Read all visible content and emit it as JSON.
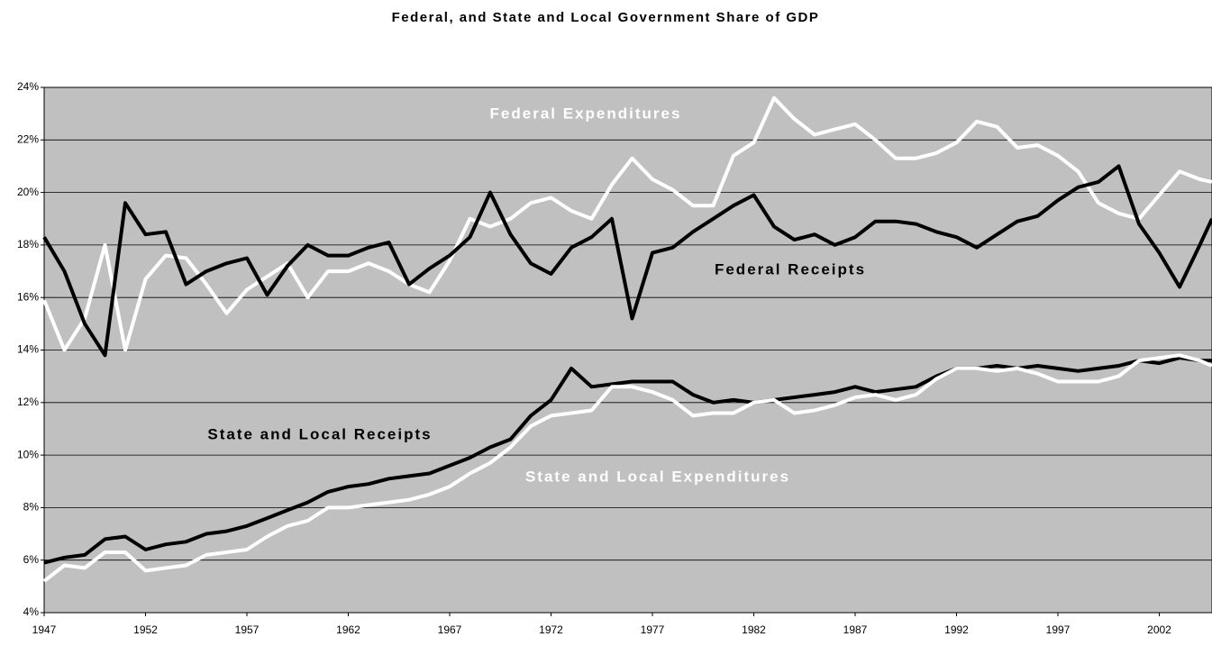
{
  "chart_data": {
    "type": "line",
    "title": "Federal, and State and Local Government Share of GDP",
    "x": [
      1947,
      1948,
      1949,
      1950,
      1951,
      1952,
      1953,
      1954,
      1955,
      1956,
      1957,
      1958,
      1959,
      1960,
      1961,
      1962,
      1963,
      1964,
      1965,
      1966,
      1967,
      1968,
      1969,
      1970,
      1971,
      1972,
      1973,
      1974,
      1975,
      1976,
      1977,
      1978,
      1979,
      1980,
      1981,
      1982,
      1983,
      1984,
      1985,
      1986,
      1987,
      1988,
      1989,
      1990,
      1991,
      1992,
      1993,
      1994,
      1995,
      1996,
      1997,
      1998,
      1999,
      2000,
      2001,
      2002,
      2003,
      2004,
      2004.6
    ],
    "series": [
      {
        "name": "Federal Expenditures",
        "color": "#ffffff",
        "values": [
          15.9,
          14.0,
          15.2,
          18.0,
          14.0,
          16.7,
          17.6,
          17.5,
          16.5,
          15.4,
          16.3,
          16.8,
          17.3,
          16.0,
          17.0,
          17.0,
          17.3,
          17.0,
          16.5,
          16.2,
          17.4,
          19.0,
          18.7,
          19.0,
          19.6,
          19.8,
          19.3,
          19.0,
          20.3,
          21.3,
          20.5,
          20.1,
          19.5,
          19.5,
          21.4,
          21.9,
          23.6,
          22.8,
          22.2,
          22.4,
          22.6,
          22.0,
          21.3,
          21.3,
          21.5,
          21.9,
          22.7,
          22.5,
          21.7,
          21.8,
          21.4,
          20.8,
          19.6,
          19.2,
          19.0,
          19.9,
          20.8,
          20.5,
          20.4
        ]
      },
      {
        "name": "Federal Receipts",
        "color": "#000000",
        "values": [
          18.3,
          17.0,
          15.0,
          13.8,
          19.6,
          18.4,
          18.5,
          16.5,
          17.0,
          17.3,
          17.5,
          16.1,
          17.2,
          18.0,
          17.6,
          17.6,
          17.9,
          18.1,
          16.5,
          17.1,
          17.6,
          18.3,
          20.0,
          18.4,
          17.3,
          16.9,
          17.9,
          18.3,
          19.0,
          15.2,
          17.7,
          17.9,
          18.5,
          19.0,
          19.5,
          19.9,
          18.7,
          18.2,
          18.4,
          18.0,
          18.3,
          18.9,
          18.9,
          18.8,
          18.5,
          18.3,
          17.9,
          18.4,
          18.9,
          19.1,
          19.7,
          20.2,
          20.4,
          21.0,
          18.8,
          17.7,
          16.4,
          18.0,
          19.0
        ]
      },
      {
        "name": "State and Local Receipts",
        "color": "#000000",
        "values": [
          5.9,
          6.1,
          6.2,
          6.8,
          6.9,
          6.4,
          6.6,
          6.7,
          7.0,
          7.1,
          7.3,
          7.6,
          7.9,
          8.2,
          8.6,
          8.8,
          8.9,
          9.1,
          9.2,
          9.3,
          9.6,
          9.9,
          10.3,
          10.6,
          11.5,
          12.1,
          13.3,
          12.6,
          12.7,
          12.8,
          12.8,
          12.8,
          12.3,
          12.0,
          12.1,
          12.0,
          12.1,
          12.2,
          12.3,
          12.4,
          12.6,
          12.4,
          12.5,
          12.6,
          13.0,
          13.3,
          13.3,
          13.4,
          13.3,
          13.4,
          13.3,
          13.2,
          13.3,
          13.4,
          13.6,
          13.5,
          13.7,
          13.6,
          13.6
        ]
      },
      {
        "name": "State and Local Expenditures",
        "color": "#ffffff",
        "values": [
          5.2,
          5.8,
          5.7,
          6.3,
          6.3,
          5.6,
          5.7,
          5.8,
          6.2,
          6.3,
          6.4,
          6.9,
          7.3,
          7.5,
          8.0,
          8.0,
          8.1,
          8.2,
          8.3,
          8.5,
          8.8,
          9.3,
          9.7,
          10.3,
          11.1,
          11.5,
          11.6,
          11.7,
          12.6,
          12.6,
          12.4,
          12.1,
          11.5,
          11.6,
          11.6,
          12.0,
          12.1,
          11.6,
          11.7,
          11.9,
          12.2,
          12.3,
          12.1,
          12.3,
          12.9,
          13.3,
          13.3,
          13.2,
          13.3,
          13.1,
          12.8,
          12.8,
          12.8,
          13.0,
          13.6,
          13.7,
          13.8,
          13.6,
          13.4
        ]
      }
    ],
    "xlim": [
      1947,
      2004.6
    ],
    "xticks": [
      1947,
      1952,
      1957,
      1962,
      1967,
      1972,
      1977,
      1982,
      1987,
      1992,
      1997,
      2002
    ],
    "ylim": [
      4,
      24
    ],
    "yticks": [
      {
        "value": 4,
        "label": "4%"
      },
      {
        "value": 6,
        "label": "6%"
      },
      {
        "value": 8,
        "label": "8%"
      },
      {
        "value": 10,
        "label": "10%"
      },
      {
        "value": 12,
        "label": "12%"
      },
      {
        "value": 14,
        "label": "14%"
      },
      {
        "value": 16,
        "label": "16%"
      },
      {
        "value": 18,
        "label": "18%"
      },
      {
        "value": 20,
        "label": "20%"
      },
      {
        "value": 22,
        "label": "22%"
      },
      {
        "value": 24,
        "label": "24%"
      }
    ],
    "grid": true,
    "background": "#c0c0c0"
  }
}
